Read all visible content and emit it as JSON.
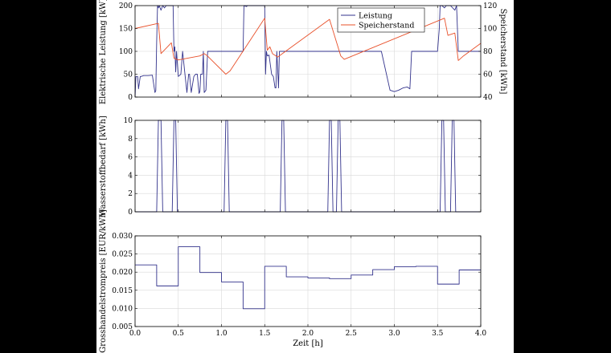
{
  "colors": {
    "blue": "#33338c",
    "red": "#e8502a",
    "background": "#000000",
    "panel": "#ffffff"
  },
  "chart_data": [
    {
      "id": "power",
      "type": "line",
      "xlim": [
        0,
        4
      ],
      "ylim": [
        0,
        200
      ],
      "ylabel": "Elektrische Leistung [kW]",
      "yticks": [
        0,
        50,
        100,
        150,
        200
      ],
      "ytick_labels": [
        "0",
        "50",
        "100",
        "150",
        "200"
      ],
      "y2lim": [
        40,
        120
      ],
      "y2label": "Speicherstand [kWh]",
      "y2ticks": [
        40,
        60,
        80,
        100,
        120
      ],
      "y2tick_labels": [
        "40",
        "60",
        "80",
        "100",
        "120"
      ],
      "legend": {
        "position": "top-center",
        "entries": [
          "Leistung",
          "Speicherstand"
        ]
      },
      "series": [
        {
          "name": "Leistung",
          "axis": "left",
          "color": "#33338c",
          "x": [
            0,
            0.01,
            0.03,
            0.04,
            0.06,
            0.07,
            0.1,
            0.15,
            0.2,
            0.23,
            0.24,
            0.25,
            0.26,
            0.27,
            0.28,
            0.3,
            0.32,
            0.34,
            0.36,
            0.38,
            0.4,
            0.42,
            0.44,
            0.45,
            0.46,
            0.47,
            0.48,
            0.5,
            0.53,
            0.55,
            0.58,
            0.6,
            0.62,
            0.63,
            0.65,
            0.68,
            0.7,
            0.72,
            0.74,
            0.75,
            0.76,
            0.78,
            0.79,
            0.8,
            0.82,
            0.84,
            0.86,
            0.88,
            0.9,
            1.05,
            1.25,
            1.26,
            1.29,
            1.3,
            1.35,
            1.45,
            1.5,
            1.51,
            1.52,
            1.53,
            1.55,
            1.58,
            1.6,
            1.62,
            1.63,
            1.64,
            1.66,
            1.67,
            1.68,
            1.69,
            1.7,
            1.75,
            2.5,
            2.85,
            2.95,
            3.0,
            3.05,
            3.1,
            3.15,
            3.18,
            3.2,
            3.5,
            3.52,
            3.53,
            3.55,
            3.58,
            3.6,
            3.63,
            3.65,
            3.7,
            3.72,
            3.74,
            3.76,
            3.8,
            4.0
          ],
          "y": [
            0,
            45,
            45,
            18,
            45,
            45,
            47,
            47,
            48,
            10,
            14,
            120,
            200,
            195,
            200,
            190,
            200,
            195,
            200,
            200,
            200,
            200,
            200,
            100,
            110,
            55,
            100,
            45,
            50,
            100,
            45,
            10,
            50,
            50,
            10,
            45,
            50,
            50,
            8,
            12,
            50,
            50,
            100,
            10,
            15,
            100,
            100,
            100,
            100,
            100,
            100,
            200,
            198,
            200,
            200,
            200,
            200,
            50,
            100,
            90,
            92,
            50,
            45,
            20,
            20,
            100,
            20,
            100,
            100,
            100,
            100,
            100,
            100,
            100,
            15,
            12,
            15,
            20,
            22,
            18,
            100,
            100,
            150,
            200,
            200,
            195,
            200,
            200,
            200,
            190,
            200,
            100,
            100,
            100,
            100
          ]
        },
        {
          "name": "Speicherstand",
          "axis": "right",
          "color": "#e8502a",
          "x": [
            0,
            0.27,
            0.3,
            0.42,
            0.45,
            0.5,
            0.75,
            0.8,
            0.83,
            1.05,
            1.1,
            1.5,
            1.53,
            1.56,
            1.59,
            1.65,
            2.25,
            2.38,
            2.42,
            3.58,
            3.62,
            3.7,
            3.74,
            3.8,
            4.0
          ],
          "y": [
            100,
            104.5,
            78,
            87.5,
            74,
            72.5,
            76,
            78,
            76.5,
            60,
            63,
            109,
            81,
            84,
            78,
            75,
            108,
            76,
            73,
            109,
            94,
            96,
            72,
            76,
            87
          ]
        }
      ]
    },
    {
      "id": "hydrogen",
      "type": "line",
      "xlim": [
        0,
        4
      ],
      "ylim": [
        0,
        10
      ],
      "ylabel": "Wasserstoffbedarf [kWh]",
      "yticks": [
        0,
        2,
        4,
        6,
        8,
        10
      ],
      "ytick_labels": [
        "0",
        "2",
        "4",
        "6",
        "8",
        "10"
      ],
      "series": [
        {
          "name": "Wasserstoffbedarf",
          "color": "#33338c",
          "x": [
            0,
            0.25,
            0.27,
            0.3,
            0.32,
            0.43,
            0.45,
            0.47,
            0.49,
            1.03,
            1.05,
            1.07,
            1.09,
            1.68,
            1.7,
            1.72,
            1.74,
            2.23,
            2.25,
            2.27,
            2.29,
            2.33,
            2.35,
            2.37,
            2.39,
            3.53,
            3.55,
            3.57,
            3.59,
            3.65,
            3.67,
            3.69,
            3.71,
            4.0
          ],
          "y": [
            0,
            0,
            10,
            10,
            0,
            0,
            10,
            10,
            0,
            0,
            10,
            10,
            0,
            0,
            10,
            10,
            0,
            0,
            10,
            10,
            0,
            0,
            10,
            10,
            0,
            0,
            10,
            10,
            0,
            0,
            10,
            10,
            0,
            0
          ]
        }
      ]
    },
    {
      "id": "price",
      "type": "line",
      "xlim": [
        0,
        4
      ],
      "ylim": [
        0.005,
        0.03
      ],
      "ylabel": "Grosshandelstrompreis [EUR/kWh]",
      "xlabel": "Zeit [h]",
      "xticks": [
        0,
        0.5,
        1,
        1.5,
        2,
        2.5,
        3,
        3.5,
        4
      ],
      "xtick_labels": [
        "0.0",
        "0.5",
        "1.0",
        "1.5",
        "2.0",
        "2.5",
        "3.0",
        "3.5",
        "4.0"
      ],
      "yticks": [
        0.005,
        0.01,
        0.015,
        0.02,
        0.025,
        0.03
      ],
      "ytick_labels": [
        "0.005",
        "0.010",
        "0.015",
        "0.020",
        "0.025",
        "0.030"
      ],
      "series": [
        {
          "name": "Grosshandelstrompreis",
          "color": "#33338c",
          "x": [
            0,
            0.25,
            0.25,
            0.5,
            0.5,
            0.75,
            0.75,
            1.0,
            1.0,
            1.25,
            1.25,
            1.5,
            1.5,
            1.75,
            1.75,
            2.0,
            2.0,
            2.25,
            2.25,
            2.5,
            2.5,
            2.75,
            2.75,
            3.0,
            3.0,
            3.25,
            3.25,
            3.5,
            3.5,
            3.75,
            3.75,
            4.0
          ],
          "y": [
            0.022,
            0.022,
            0.0162,
            0.0162,
            0.027,
            0.027,
            0.0199,
            0.0199,
            0.0173,
            0.0173,
            0.0099,
            0.0099,
            0.0216,
            0.0216,
            0.0187,
            0.0187,
            0.0184,
            0.0184,
            0.0182,
            0.0182,
            0.0192,
            0.0192,
            0.0207,
            0.0207,
            0.0215,
            0.0215,
            0.0216,
            0.0216,
            0.0167,
            0.0167,
            0.0206,
            0.0206
          ]
        }
      ]
    }
  ]
}
